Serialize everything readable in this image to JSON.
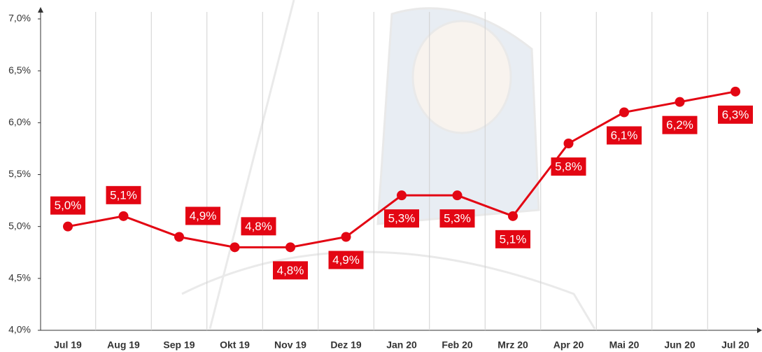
{
  "chart_data": {
    "type": "line",
    "categories": [
      "Jul 19",
      "Aug 19",
      "Sep 19",
      "Okt 19",
      "Nov 19",
      "Dez 19",
      "Jan 20",
      "Feb 20",
      "Mrz 20",
      "Apr 20",
      "Mai 20",
      "Jun 20",
      "Jul 20"
    ],
    "values": [
      5.0,
      5.1,
      4.9,
      4.8,
      4.8,
      4.9,
      5.3,
      5.3,
      5.1,
      5.8,
      6.1,
      6.2,
      6.3
    ],
    "value_labels": [
      "5,0%",
      "5,1%",
      "4,9%",
      "4,8%",
      "4,8%",
      "4,9%",
      "5,3%",
      "5,3%",
      "5,1%",
      "5,8%",
      "6,1%",
      "6,2%",
      "6,3%"
    ],
    "color": "#e30613",
    "ylim": [
      4.0,
      7.0
    ],
    "yticks": [
      {
        "value": 4.0,
        "label": "4,0%"
      },
      {
        "value": 4.5,
        "label": "4,5%"
      },
      {
        "value": 5.0,
        "label": "5,0%"
      },
      {
        "value": 5.5,
        "label": "5,5%"
      },
      {
        "value": 6.0,
        "label": "6,0%"
      },
      {
        "value": 6.5,
        "label": "6,5%"
      },
      {
        "value": 7.0,
        "label": "7,0%"
      }
    ]
  }
}
